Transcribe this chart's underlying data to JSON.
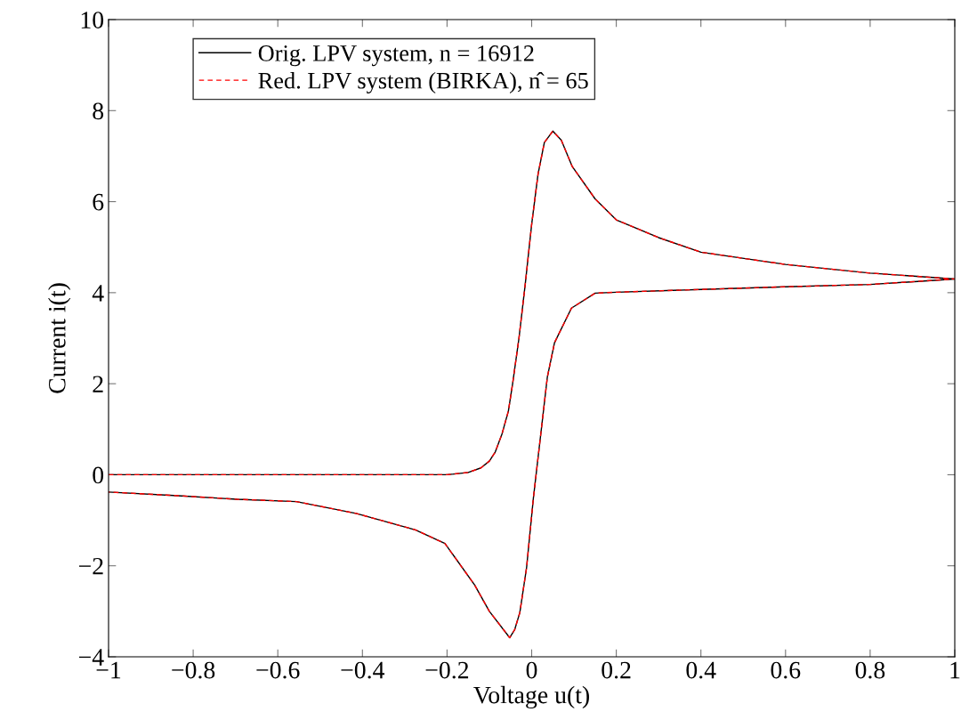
{
  "chart_data": {
    "type": "line",
    "xlabel": "Voltage u(t)",
    "ylabel": "Current i(t)",
    "x": [
      -1,
      -0.6,
      -0.2,
      -0.15,
      -0.12,
      -0.1,
      -0.086,
      -0.07,
      -0.055,
      -0.045,
      -0.03,
      -0.015,
      0,
      0.015,
      0.03,
      0.05,
      0.07,
      0.096,
      0.15,
      0.2,
      0.3,
      0.4,
      0.6,
      0.8,
      1,
      0.8,
      0.6,
      0.4,
      0.2,
      0.15,
      0.094,
      0.054,
      0.037,
      0.021,
      0.004,
      -0.012,
      -0.028,
      -0.04,
      -0.052,
      -0.1,
      -0.135,
      -0.205,
      -0.275,
      -0.415,
      -0.556,
      -0.696,
      -0.836,
      -1
    ],
    "series": [
      {
        "name": "Orig. LPV system, n = 16912",
        "color": "#000000",
        "line_style": "solid",
        "values": [
          0,
          0,
          0,
          0.05,
          0.15,
          0.3,
          0.5,
          0.9,
          1.4,
          2.0,
          3.0,
          4.2,
          5.5,
          6.6,
          7.3,
          7.55,
          7.35,
          6.77,
          6.06,
          5.6,
          5.21,
          4.89,
          4.62,
          4.43,
          4.3,
          4.18,
          4.13,
          4.07,
          4.01,
          3.99,
          3.66,
          2.9,
          2.14,
          0.85,
          -0.52,
          -2.04,
          -3.03,
          -3.4,
          -3.58,
          -3.0,
          -2.42,
          -1.51,
          -1.21,
          -0.85,
          -0.59,
          -0.54,
          -0.46,
          -0.38
        ]
      },
      {
        "name": "Red. LPV system (BIRKA), n̂ = 65",
        "color": "#ff0000",
        "line_style": "dashed",
        "values": [
          0,
          0,
          0,
          0.05,
          0.15,
          0.3,
          0.5,
          0.9,
          1.4,
          2.0,
          3.0,
          4.2,
          5.5,
          6.6,
          7.3,
          7.55,
          7.35,
          6.77,
          6.06,
          5.6,
          5.21,
          4.89,
          4.62,
          4.43,
          4.3,
          4.18,
          4.13,
          4.07,
          4.01,
          3.99,
          3.66,
          2.9,
          2.14,
          0.85,
          -0.52,
          -2.04,
          -3.03,
          -3.4,
          -3.58,
          -3.0,
          -2.42,
          -1.51,
          -1.21,
          -0.85,
          -0.59,
          -0.54,
          -0.46,
          -0.38
        ]
      }
    ],
    "xlim": [
      -1,
      1
    ],
    "ylim": [
      -4,
      10
    ],
    "xticks": [
      {
        "value": -1,
        "label": "−1"
      },
      {
        "value": -0.8,
        "label": "−0.8"
      },
      {
        "value": -0.6,
        "label": "−0.6"
      },
      {
        "value": -0.4,
        "label": "−0.4"
      },
      {
        "value": -0.2,
        "label": "−0.2"
      },
      0,
      0.2,
      0.4,
      0.6,
      0.8,
      1
    ],
    "yticks": [
      {
        "value": -4,
        "label": "−4"
      },
      {
        "value": -2,
        "label": "−2"
      },
      0,
      2,
      4,
      6,
      8,
      10
    ],
    "grid": false,
    "legend": "top left",
    "marker": "none"
  }
}
